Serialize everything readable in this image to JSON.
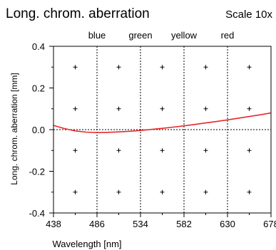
{
  "chart_data": {
    "type": "line",
    "title": "Long. chrom. aberration",
    "scale_label": "Scale 10x",
    "xlabel": "Wavelength [nm]",
    "ylabel": "Long. chrom. aberration [mm]",
    "xlim": [
      438,
      678
    ],
    "ylim": [
      -0.4,
      0.4
    ],
    "x_ticks": [
      438,
      486,
      534,
      582,
      630,
      678
    ],
    "x_tick_labels": [
      "438",
      "486",
      "534",
      "582",
      "630",
      "678"
    ],
    "y_ticks": [
      -0.4,
      -0.2,
      0.0,
      0.2,
      0.4
    ],
    "y_tick_labels": [
      "-0.4",
      "-0.2",
      "0.0",
      "0.2",
      "0.4"
    ],
    "grid_x": [
      462,
      510,
      558,
      606,
      654
    ],
    "grid_y": [
      -0.3,
      -0.1,
      0.1,
      0.3
    ],
    "reference_lines": [
      {
        "label": "blue",
        "x": 486
      },
      {
        "label": "green",
        "x": 534
      },
      {
        "label": "yellow",
        "x": 582
      },
      {
        "label": "red",
        "x": 630
      }
    ],
    "series": [
      {
        "color": "#e8282b",
        "x": [
          438,
          450,
          462,
          474,
          486,
          498,
          510,
          522,
          534,
          546,
          558,
          570,
          582,
          594,
          606,
          618,
          630,
          642,
          654,
          666,
          678
        ],
        "y": [
          0.02,
          0.005,
          -0.006,
          -0.012,
          -0.014,
          -0.013,
          -0.011,
          -0.008,
          -0.004,
          0.001,
          0.006,
          0.012,
          0.018,
          0.025,
          0.032,
          0.039,
          0.047,
          0.055,
          0.063,
          0.071,
          0.08
        ]
      }
    ]
  }
}
